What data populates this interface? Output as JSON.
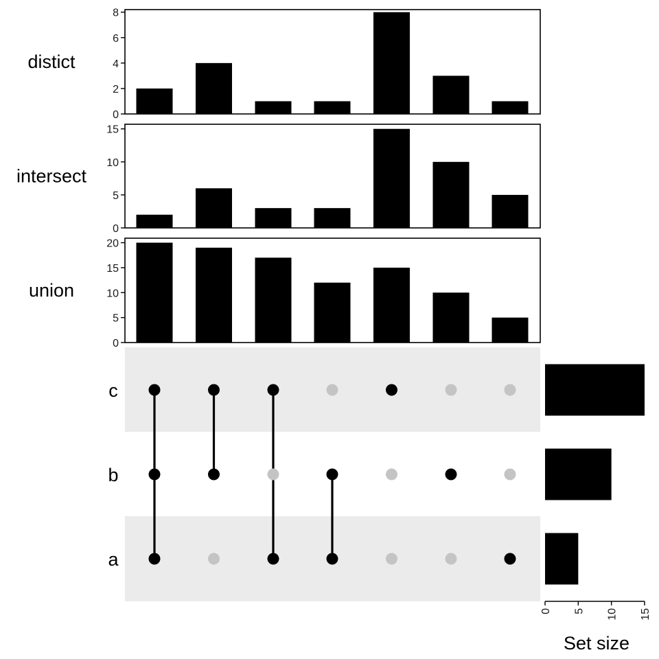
{
  "chart_data": {
    "type": "upset",
    "sets": [
      "c",
      "b",
      "a"
    ],
    "intersections": [
      {
        "members": [
          "a",
          "b",
          "c"
        ]
      },
      {
        "members": [
          "b",
          "c"
        ]
      },
      {
        "members": [
          "a",
          "c"
        ]
      },
      {
        "members": [
          "a",
          "b"
        ]
      },
      {
        "members": [
          "c"
        ]
      },
      {
        "members": [
          "b"
        ]
      },
      {
        "members": [
          "a"
        ]
      }
    ],
    "panels": [
      {
        "label": "distict",
        "values": [
          2,
          4,
          1,
          1,
          8,
          3,
          1
        ],
        "ylim": [
          0,
          8.2
        ],
        "ticks": [
          0,
          2,
          4,
          6,
          8
        ]
      },
      {
        "label": "intersect",
        "values": [
          2,
          6,
          3,
          3,
          15,
          10,
          5
        ],
        "ylim": [
          0,
          15.7
        ],
        "ticks": [
          0,
          5,
          10,
          15
        ]
      },
      {
        "label": "union",
        "values": [
          20,
          19,
          17,
          12,
          15,
          10,
          5
        ],
        "ylim": [
          0,
          20.9
        ],
        "ticks": [
          0,
          5,
          10,
          15,
          20
        ]
      }
    ],
    "set_size": {
      "xlabel": "Set size",
      "values": {
        "c": 15,
        "b": 10,
        "a": 5
      },
      "ticks": [
        0,
        5,
        10,
        15
      ],
      "xlim": [
        0,
        15
      ]
    },
    "colors": {
      "bar": "#000000",
      "active_dot": "#000000",
      "inactive_dot": "#c4c4c4",
      "stripe": "#ebebeb"
    }
  }
}
